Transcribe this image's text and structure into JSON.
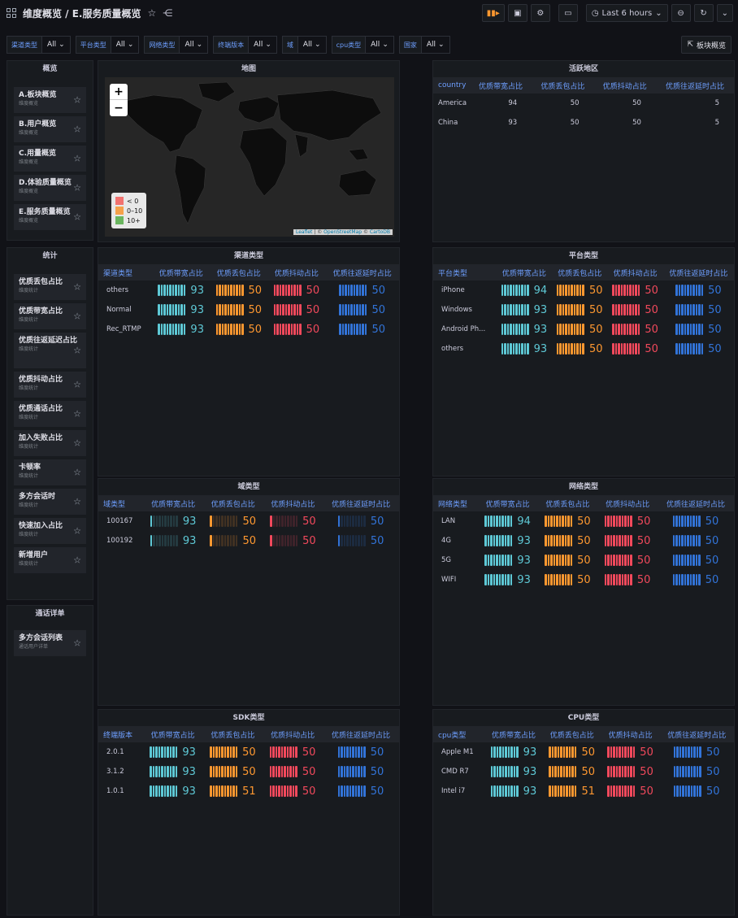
{
  "header": {
    "breadcrumb": "维度概览 / E.服务质量概览",
    "time_range": "Last 6 hours"
  },
  "variables": [
    {
      "label": "渠道类型",
      "value": "All"
    },
    {
      "label": "平台类型",
      "value": "All"
    },
    {
      "label": "网络类型",
      "value": "All"
    },
    {
      "label": "终端版本",
      "value": "All"
    },
    {
      "label": "域",
      "value": "All"
    },
    {
      "label": "cpu类型",
      "value": "All"
    },
    {
      "label": "国家",
      "value": "All"
    }
  ],
  "panel_overview_button": "板块概览",
  "overview_panel": {
    "title": "概览",
    "items": [
      {
        "title": "A.板块概览",
        "sub": "维度概览"
      },
      {
        "title": "B.用户概览",
        "sub": "维度概览"
      },
      {
        "title": "C.用量概览",
        "sub": "维度概览"
      },
      {
        "title": "D.体验质量概览",
        "sub": "维度概览"
      },
      {
        "title": "E.服务质量概览",
        "sub": "维度概览"
      }
    ]
  },
  "stats_panel": {
    "title": "统计",
    "items": [
      {
        "title": "优质丢包占比",
        "sub": "维度统计"
      },
      {
        "title": "优质带宽占比",
        "sub": "维度统计"
      },
      {
        "title": "优质往返延迟占比",
        "sub": "维度统计"
      },
      {
        "title": "优质抖动占比",
        "sub": "维度统计"
      },
      {
        "title": "优质通话占比",
        "sub": "维度统计"
      },
      {
        "title": "加入失败占比",
        "sub": "维度统计"
      },
      {
        "title": "卡顿率",
        "sub": "维度统计"
      },
      {
        "title": "多方会话时",
        "sub": "维度统计"
      },
      {
        "title": "快速加入占比",
        "sub": "维度统计"
      },
      {
        "title": "新增用户",
        "sub": "维度统计"
      }
    ]
  },
  "call_detail_panel": {
    "title": "通话详单",
    "items": [
      {
        "title": "多方会话列表",
        "sub": "通话用户详单"
      }
    ]
  },
  "map_panel": {
    "title": "地图",
    "zoom_in": "+",
    "zoom_out": "−",
    "legend": [
      {
        "label": "< 0",
        "color": "#f2726f"
      },
      {
        "label": "0–10",
        "color": "#f5a14a"
      },
      {
        "label": "10+",
        "color": "#6ab55e"
      }
    ],
    "attribution": {
      "leaflet": "Leaflet",
      "sep1": " | © ",
      "osm": "OpenStreetMap",
      "sep2": " © ",
      "carto": "CartoDB"
    }
  },
  "active_region_panel": {
    "title": "活跃地区",
    "columns": [
      "country",
      "优质带宽占比",
      "优质丢包占比",
      "优质抖动占比",
      "优质往返延时占比"
    ],
    "rows": [
      [
        "America",
        "94",
        "50",
        "50",
        "5"
      ],
      [
        "China",
        "93",
        "50",
        "50",
        "5"
      ]
    ]
  },
  "metric_panels": [
    {
      "id": "channel",
      "title": "渠道类型",
      "columns": [
        "渠道类型",
        "优质带宽占比",
        "优质丢包占比",
        "优质抖动占比",
        "优质往返延时占比"
      ],
      "rows": [
        [
          "others",
          93,
          50,
          50,
          50
        ],
        [
          "Normal",
          93,
          50,
          50,
          50
        ],
        [
          "Rec_RTMP",
          93,
          50,
          50,
          50
        ]
      ]
    },
    {
      "id": "platform",
      "title": "平台类型",
      "columns": [
        "平台类型",
        "优质带宽占比",
        "优质丢包占比",
        "优质抖动占比",
        "优质往返延时占比"
      ],
      "rows": [
        [
          "iPhone",
          94,
          50,
          50,
          50
        ],
        [
          "Windows",
          93,
          50,
          50,
          50
        ],
        [
          "Android Ph...",
          93,
          50,
          50,
          50
        ],
        [
          "others",
          93,
          50,
          50,
          50
        ]
      ]
    },
    {
      "id": "domain",
      "title": "域类型",
      "dim": true,
      "columns": [
        "域类型",
        "优质带宽占比",
        "优质丢包占比",
        "优质抖动占比",
        "优质往返延时占比"
      ],
      "rows": [
        [
          "100167",
          93,
          50,
          50,
          50
        ],
        [
          "100192",
          93,
          50,
          50,
          50
        ]
      ]
    },
    {
      "id": "network",
      "title": "网络类型",
      "columns": [
        "网络类型",
        "优质带宽占比",
        "优质丢包占比",
        "优质抖动占比",
        "优质往返延时占比"
      ],
      "rows": [
        [
          "LAN",
          94,
          50,
          50,
          50
        ],
        [
          "4G",
          93,
          50,
          50,
          50
        ],
        [
          "5G",
          93,
          50,
          50,
          50
        ],
        [
          "WIFI",
          93,
          50,
          50,
          50
        ]
      ]
    },
    {
      "id": "sdk",
      "title": "SDK类型",
      "columns": [
        "终端版本",
        "优质带宽占比",
        "优质丢包占比",
        "优质抖动占比",
        "优质往返延时占比"
      ],
      "rows": [
        [
          "2.0.1",
          93,
          50,
          50,
          50
        ],
        [
          "3.1.2",
          93,
          50,
          50,
          50
        ],
        [
          "1.0.1",
          93,
          51,
          50,
          50
        ]
      ]
    },
    {
      "id": "cpu",
      "title": "CPU类型",
      "columns": [
        "cpu类型",
        "优质带宽占比",
        "优质丢包占比",
        "优质抖动占比",
        "优质往返延时占比"
      ],
      "rows": [
        [
          "Apple M1",
          93,
          50,
          50,
          50
        ],
        [
          "CMD R7",
          93,
          50,
          50,
          50
        ],
        [
          "Intel i7",
          93,
          51,
          50,
          50
        ]
      ]
    }
  ],
  "gauge_colors": [
    "#5ec9d6",
    "#ff9830",
    "#f2495c",
    "#3274d9"
  ]
}
